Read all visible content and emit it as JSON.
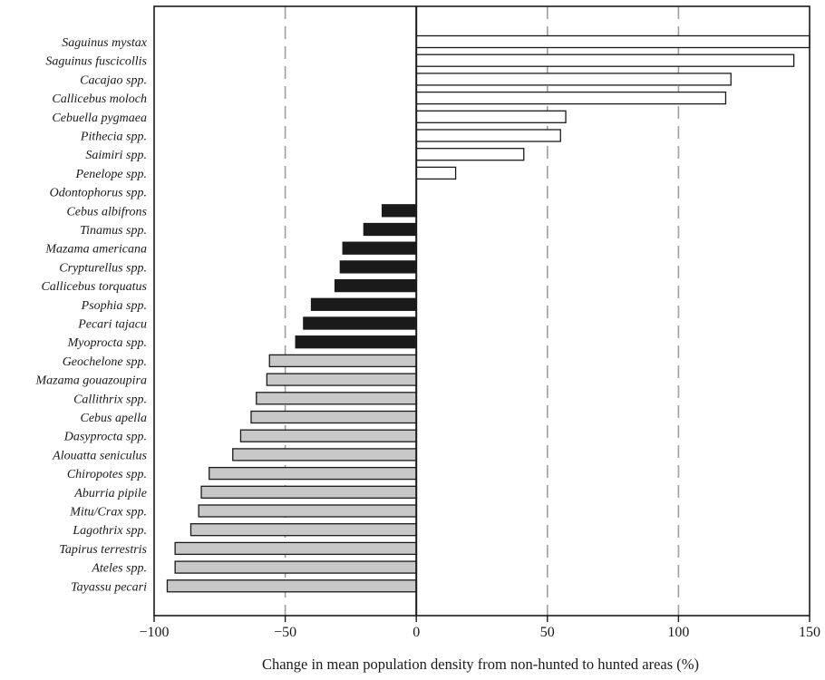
{
  "colors": {
    "increase": "#ffffff",
    "moderate_decline": "#1a1a1a",
    "strong_decline": "#c8c8c8",
    "stroke": "#1a1a1a",
    "gridline": "#9e9e9e"
  },
  "chart_data": {
    "type": "bar",
    "orientation": "horizontal",
    "xlabel": "Change in mean population density from non-hunted to hunted areas (%)",
    "ylabel": "",
    "xlim": [
      -100,
      150
    ],
    "xticks": [
      -100,
      -50,
      0,
      50,
      100,
      150
    ],
    "xtick_labels": [
      "−100",
      "−50",
      "0",
      "50",
      "100",
      "150"
    ],
    "reference_lines": [
      -50,
      50,
      100
    ],
    "grid": false,
    "legend": "none",
    "categories": [
      "Saguinus mystax",
      "Saguinus fuscicollis",
      "Cacajao spp.",
      "Callicebus moloch",
      "Cebuella pygmaea",
      "Pithecia spp.",
      "Saimiri spp.",
      "Penelope spp.",
      "Odontophorus spp.",
      "Cebus albifrons",
      "Tinamus spp.",
      "Mazama americana",
      "Crypturellus spp.",
      "Callicebus torquatus",
      "Psophia spp.",
      "Pecari tajacu",
      "Myoprocta spp.",
      "Geochelone spp.",
      "Mazama gouazoupira",
      "Callithrix spp.",
      "Cebus apella",
      "Dasyprocta spp.",
      "Alouatta seniculus",
      "Chiropotes spp.",
      "Aburria pipile",
      "Mitu/Crax spp.",
      "Lagothrix spp.",
      "Tapirus terrestris",
      "Ateles spp.",
      "Tayassu pecari"
    ],
    "values": [
      150,
      144,
      120,
      118,
      57,
      55,
      41,
      15,
      0,
      -13,
      -20,
      -28,
      -29,
      -31,
      -40,
      -43,
      -46,
      -56,
      -57,
      -61,
      -63,
      -67,
      -70,
      -79,
      -82,
      -83,
      -86,
      -92,
      -92,
      -95
    ],
    "groups": [
      "increase",
      "increase",
      "increase",
      "increase",
      "increase",
      "increase",
      "increase",
      "increase",
      "increase",
      "moderate_decline",
      "moderate_decline",
      "moderate_decline",
      "moderate_decline",
      "moderate_decline",
      "moderate_decline",
      "moderate_decline",
      "moderate_decline",
      "strong_decline",
      "strong_decline",
      "strong_decline",
      "strong_decline",
      "strong_decline",
      "strong_decline",
      "strong_decline",
      "strong_decline",
      "strong_decline",
      "strong_decline",
      "strong_decline",
      "strong_decline",
      "strong_decline"
    ]
  }
}
